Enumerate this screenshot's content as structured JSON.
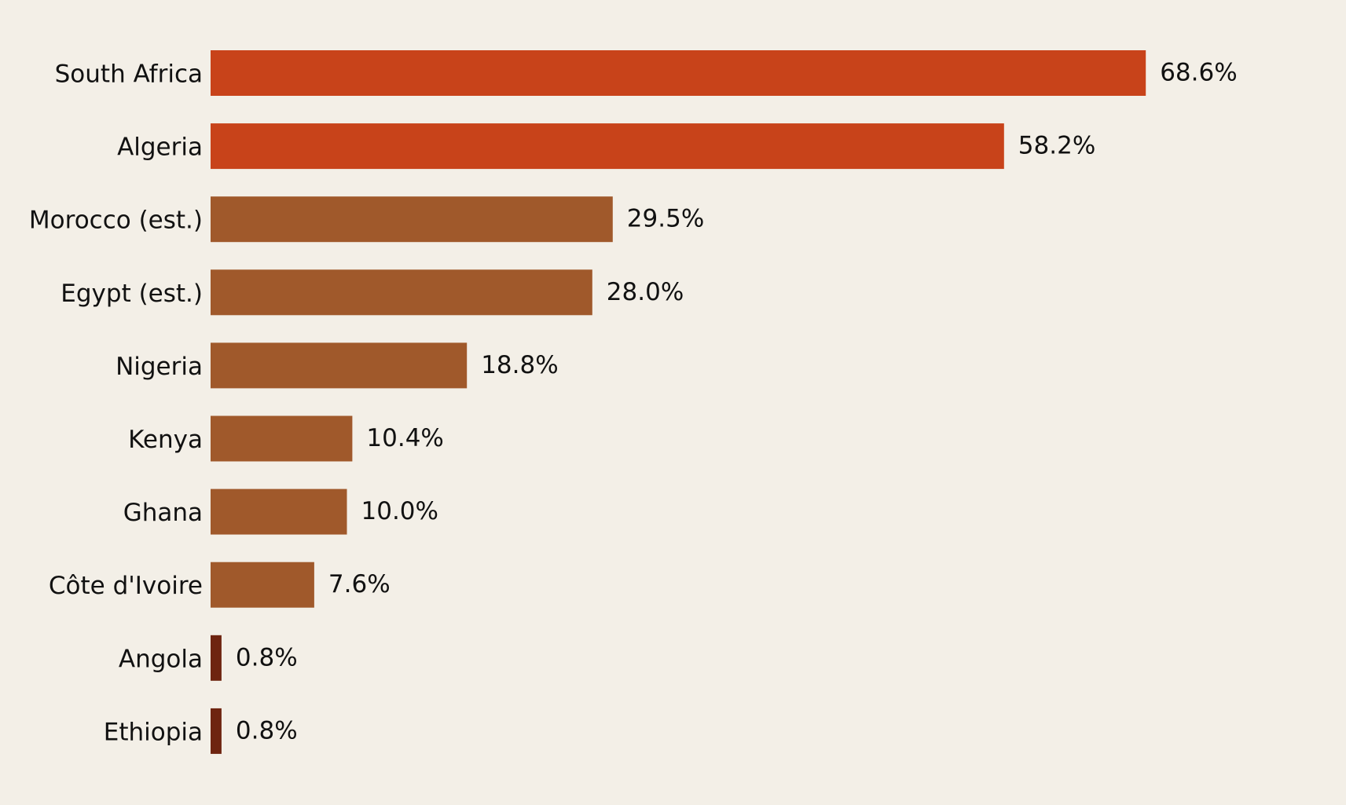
{
  "chart_data": {
    "type": "bar",
    "orientation": "horizontal",
    "categories": [
      "South Africa",
      "Algeria",
      "Morocco (est.)",
      "Egypt (est.)",
      "Nigeria",
      "Kenya",
      "Ghana",
      "Côte d'Ivoire",
      "Angola",
      "Ethiopia"
    ],
    "values": [
      68.6,
      58.2,
      29.5,
      28.0,
      18.8,
      10.4,
      10.0,
      7.6,
      0.8,
      0.8
    ],
    "value_labels": [
      "68.6%",
      "58.2%",
      "29.5%",
      "28.0%",
      "18.8%",
      "10.4%",
      "10.0%",
      "7.6%",
      "0.8%",
      "0.8%"
    ],
    "bar_colors": [
      "#c8431a",
      "#c8431a",
      "#a0592b",
      "#a0592b",
      "#a0592b",
      "#a0592b",
      "#a0592b",
      "#a0592b",
      "#6e2410",
      "#6e2410"
    ],
    "title": "",
    "xlabel": "",
    "ylabel": "",
    "xlim": [
      0,
      72
    ],
    "grid": false,
    "legend": false,
    "background": "#f3efe7",
    "text_color": "#111111"
  }
}
